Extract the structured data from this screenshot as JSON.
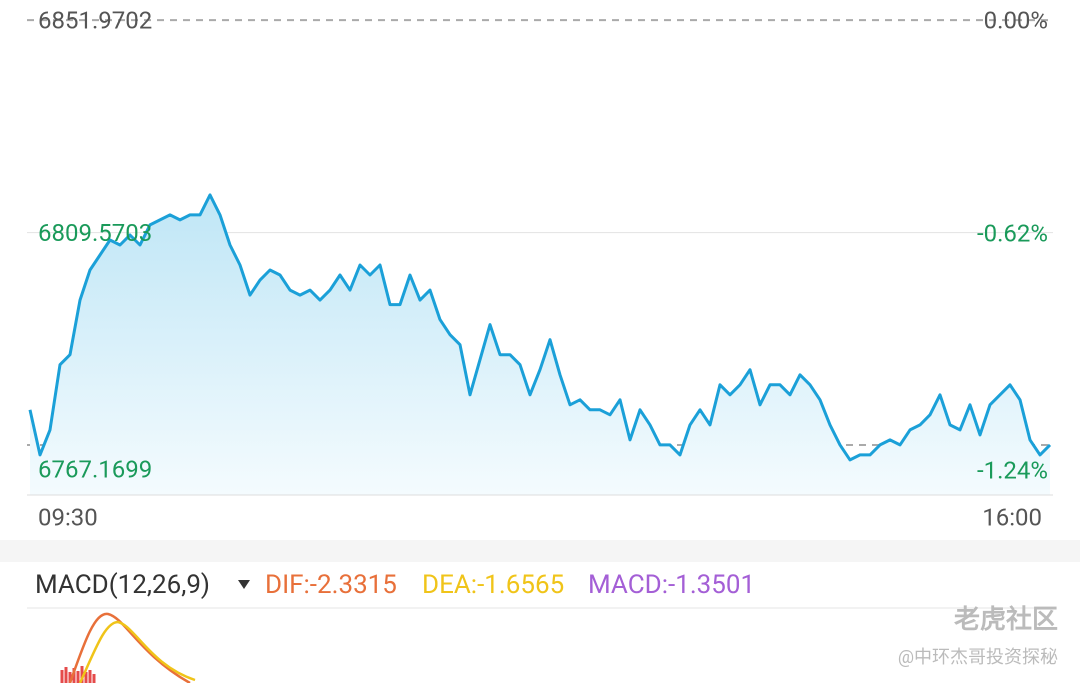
{
  "chart_data": {
    "type": "line",
    "categories": [
      "09:30",
      null,
      null,
      null,
      null,
      null,
      null,
      null,
      null,
      null,
      null,
      null,
      null,
      null,
      null,
      null,
      null,
      null,
      null,
      null,
      null,
      null,
      null,
      null,
      null,
      null,
      null,
      null,
      null,
      null,
      null,
      null,
      null,
      null,
      null,
      null,
      null,
      null,
      null,
      null,
      null,
      null,
      null,
      null,
      null,
      null,
      null,
      null,
      null,
      null,
      null,
      null,
      null,
      null,
      null,
      null,
      null,
      null,
      null,
      null,
      null,
      null,
      null,
      null,
      null,
      null,
      null,
      null,
      null,
      null,
      null,
      null,
      null,
      null,
      null,
      null,
      null,
      null,
      null,
      null,
      null,
      null,
      null,
      null,
      null,
      null,
      null,
      null,
      null,
      null,
      null,
      null,
      null,
      null,
      null,
      null,
      null,
      null,
      null,
      null,
      null,
      null,
      "16:00"
    ],
    "series": [
      {
        "color": "#1ba0d8",
        "values": [
          6774.2,
          6765.2,
          6770.2,
          6783.2,
          6785.2,
          6796.1,
          6802.1,
          6805.1,
          6808.1,
          6807.1,
          6809.1,
          6807.1,
          6811.1,
          6812.1,
          6813.1,
          6812.1,
          6813.1,
          6813.1,
          6817.1,
          6813.1,
          6807.1,
          6803.1,
          6797.1,
          6800.1,
          6802.1,
          6801.1,
          6798.1,
          6797.1,
          6798.1,
          6796.1,
          6798.1,
          6801.1,
          6798.1,
          6803.1,
          6801.1,
          6803.1,
          6795.2,
          6795.2,
          6801.1,
          6796.1,
          6798.1,
          6792.2,
          6789.2,
          6787.2,
          6777.2,
          6784.2,
          6791.2,
          6785.2,
          6785.2,
          6783.2,
          6777.2,
          6782.2,
          6788.2,
          6781.2,
          6775.2,
          6776.2,
          6774.2,
          6774.2,
          6773.2,
          6776.2,
          6768.2,
          6774.2,
          6771.2,
          6767.2,
          6767.2,
          6765.2,
          6771.2,
          6774.2,
          6771.2,
          6779.2,
          6777.2,
          6779.2,
          6782.2,
          6775.2,
          6779.2,
          6779.2,
          6777.2,
          6781.2,
          6779.2,
          6776.2,
          6771.2,
          6767.2,
          6764.2,
          6765.2,
          6765.2,
          6767.2,
          6768.2,
          6767.2,
          6770.2,
          6771.2,
          6773.2,
          6777.2,
          6771.2,
          6770.2,
          6775.2,
          6769.2,
          6775.2,
          6777.2,
          6779.2,
          6776.2,
          6768.2,
          6765.2,
          6767.2
        ]
      }
    ],
    "ylim": [
      6757.2,
      6854.0
    ],
    "yticks": [
      6851.9702,
      6809.5703,
      6767.1699
    ],
    "y2lim": [
      -1.383,
      0.03
    ],
    "y2ticks": [
      {
        "value": 0,
        "label": "0.00%"
      },
      {
        "value": -0.62,
        "label": "-0.62%"
      },
      {
        "value": -1.24,
        "label": "-1.24%"
      }
    ]
  },
  "macd": {
    "title": "MACD(12,26,9)",
    "dif": "DIF:-2.3315",
    "dea": "DEA:-1.6565",
    "macd": "MACD:-1.3501"
  },
  "watermark": {
    "brand": "老虎社区",
    "author": "@中环杰哥投资探秘"
  }
}
